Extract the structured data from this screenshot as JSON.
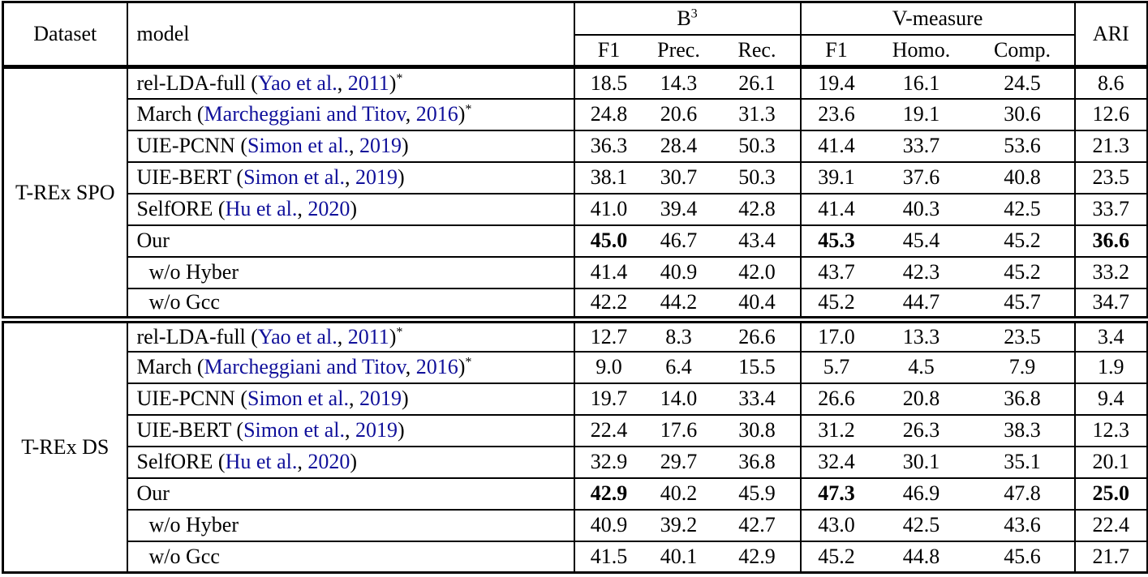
{
  "table": {
    "citation_color": "#10109A",
    "header": {
      "dataset_label": "Dataset",
      "model_label": "model",
      "group_b3_base": "B",
      "group_b3_sup": "3",
      "group_vmeasure": "V-measure",
      "ari_label": "ARI",
      "sub_columns": [
        "F1",
        "Prec.",
        "Rec.",
        "F1",
        "Homo.",
        "Comp."
      ]
    },
    "sections": [
      {
        "dataset": "T-REx SPO",
        "rows": [
          {
            "model_name": "rel-LDA-full",
            "citation": {
              "authors": "Yao et al.",
              "year": "2011"
            },
            "asterisk": true,
            "indented": false,
            "values": [
              "18.5",
              "14.3",
              "26.1",
              "19.4",
              "16.1",
              "24.5",
              "8.6"
            ],
            "bold_indices": []
          },
          {
            "model_name": "March",
            "citation": {
              "authors": "Marcheggiani and Titov",
              "year": "2016"
            },
            "asterisk": true,
            "indented": false,
            "values": [
              "24.8",
              "20.6",
              "31.3",
              "23.6",
              "19.1",
              "30.6",
              "12.6"
            ],
            "bold_indices": []
          },
          {
            "model_name": "UIE-PCNN",
            "citation": {
              "authors": "Simon et al.",
              "year": "2019"
            },
            "asterisk": false,
            "indented": false,
            "values": [
              "36.3",
              "28.4",
              "50.3",
              "41.4",
              "33.7",
              "53.6",
              "21.3"
            ],
            "bold_indices": []
          },
          {
            "model_name": "UIE-BERT",
            "citation": {
              "authors": "Simon et al.",
              "year": "2019"
            },
            "asterisk": false,
            "indented": false,
            "values": [
              "38.1",
              "30.7",
              "50.3",
              "39.1",
              "37.6",
              "40.8",
              "23.5"
            ],
            "bold_indices": []
          },
          {
            "model_name": "SelfORE",
            "citation": {
              "authors": "Hu et al.",
              "year": "2020"
            },
            "asterisk": false,
            "indented": false,
            "values": [
              "41.0",
              "39.4",
              "42.8",
              "41.4",
              "40.3",
              "42.5",
              "33.7"
            ],
            "bold_indices": []
          },
          {
            "model_name": "Our",
            "citation": null,
            "asterisk": false,
            "indented": false,
            "values": [
              "45.0",
              "46.7",
              "43.4",
              "45.3",
              "45.4",
              "45.2",
              "36.6"
            ],
            "bold_indices": [
              0,
              3,
              6
            ]
          },
          {
            "model_name": "w/o Hyber",
            "citation": null,
            "asterisk": false,
            "indented": true,
            "values": [
              "41.4",
              "40.9",
              "42.0",
              "43.7",
              "42.3",
              "45.2",
              "33.2"
            ],
            "bold_indices": []
          },
          {
            "model_name": "w/o Gcc",
            "citation": null,
            "asterisk": false,
            "indented": true,
            "values": [
              "42.2",
              "44.2",
              "40.4",
              "45.2",
              "44.7",
              "45.7",
              "34.7"
            ],
            "bold_indices": []
          }
        ]
      },
      {
        "dataset": "T-REx DS",
        "rows": [
          {
            "model_name": "rel-LDA-full",
            "citation": {
              "authors": "Yao et al.",
              "year": "2011"
            },
            "asterisk": true,
            "indented": false,
            "values": [
              "12.7",
              "8.3",
              "26.6",
              "17.0",
              "13.3",
              "23.5",
              "3.4"
            ],
            "bold_indices": []
          },
          {
            "model_name": "March",
            "citation": {
              "authors": "Marcheggiani and Titov",
              "year": "2016"
            },
            "asterisk": true,
            "indented": false,
            "values": [
              "9.0",
              "6.4",
              "15.5",
              "5.7",
              "4.5",
              "7.9",
              "1.9"
            ],
            "bold_indices": []
          },
          {
            "model_name": "UIE-PCNN",
            "citation": {
              "authors": "Simon et al.",
              "year": "2019"
            },
            "asterisk": false,
            "indented": false,
            "values": [
              "19.7",
              "14.0",
              "33.4",
              "26.6",
              "20.8",
              "36.8",
              "9.4"
            ],
            "bold_indices": []
          },
          {
            "model_name": "UIE-BERT",
            "citation": {
              "authors": "Simon et al.",
              "year": "2019"
            },
            "asterisk": false,
            "indented": false,
            "values": [
              "22.4",
              "17.6",
              "30.8",
              "31.2",
              "26.3",
              "38.3",
              "12.3"
            ],
            "bold_indices": []
          },
          {
            "model_name": "SelfORE",
            "citation": {
              "authors": "Hu et al.",
              "year": "2020"
            },
            "asterisk": false,
            "indented": false,
            "values": [
              "32.9",
              "29.7",
              "36.8",
              "32.4",
              "30.1",
              "35.1",
              "20.1"
            ],
            "bold_indices": []
          },
          {
            "model_name": "Our",
            "citation": null,
            "asterisk": false,
            "indented": false,
            "values": [
              "42.9",
              "40.2",
              "45.9",
              "47.3",
              "46.9",
              "47.8",
              "25.0"
            ],
            "bold_indices": [
              0,
              3,
              6
            ]
          },
          {
            "model_name": "w/o Hyber",
            "citation": null,
            "asterisk": false,
            "indented": true,
            "values": [
              "40.9",
              "39.2",
              "42.7",
              "43.0",
              "42.5",
              "43.6",
              "22.4"
            ],
            "bold_indices": []
          },
          {
            "model_name": "w/o Gcc",
            "citation": null,
            "asterisk": false,
            "indented": true,
            "values": [
              "41.5",
              "40.1",
              "42.9",
              "45.2",
              "44.8",
              "45.6",
              "21.7"
            ],
            "bold_indices": []
          }
        ]
      }
    ]
  }
}
